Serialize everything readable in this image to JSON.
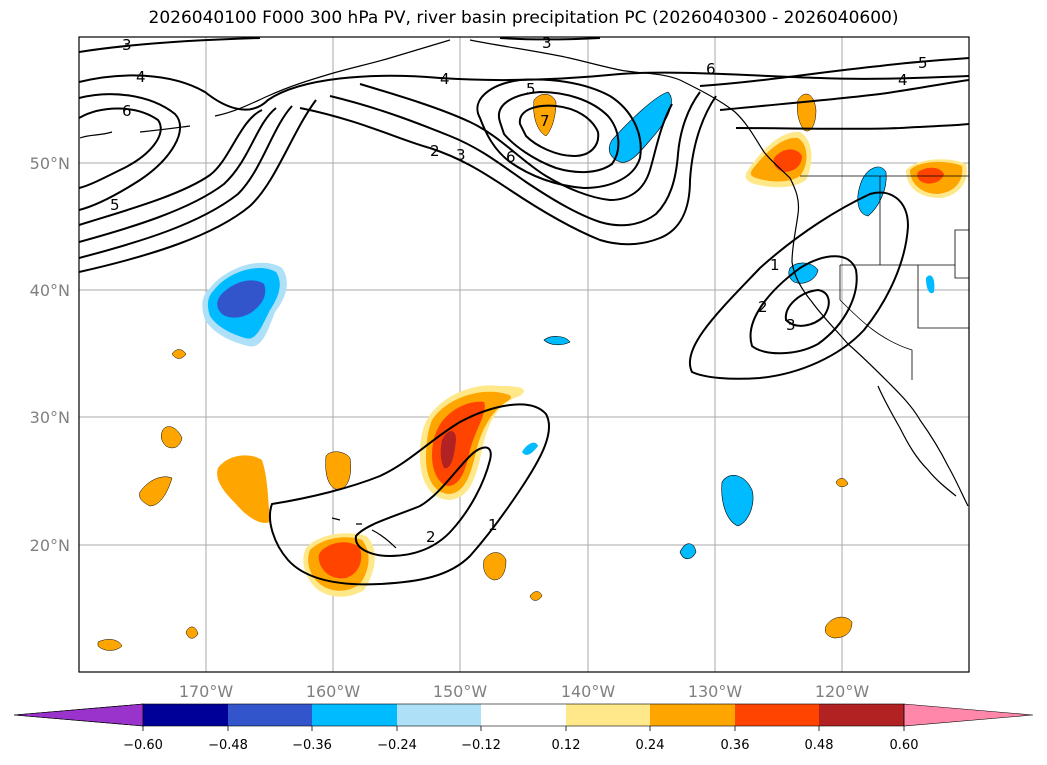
{
  "title": "2026040100 F000 300 hPa PV, river basin precipitation PC (2026040300 - 2026040600)",
  "map": {
    "lat_labels": [
      "50°N",
      "40°N",
      "30°N",
      "20°N"
    ],
    "lon_labels": [
      "170°W",
      "160°W",
      "150°W",
      "140°W",
      "130°W",
      "120°W"
    ],
    "contour_labels": [
      "3",
      "3",
      "4",
      "4",
      "4",
      "5",
      "5",
      "5",
      "6",
      "6",
      "7",
      "2",
      "3",
      "6",
      "1",
      "2",
      "3",
      "2",
      "1"
    ]
  },
  "colorbar": {
    "colors": [
      "#9933cc",
      "#000099",
      "#3355cc",
      "#00bbff",
      "#aee0f8",
      "#ffffff",
      "#ffe88a",
      "#ffa500",
      "#ff4400",
      "#b22222",
      "#ff88aa"
    ],
    "tick_labels": [
      "−0.60",
      "−0.48",
      "−0.36",
      "−0.24",
      "−0.12",
      "0.12",
      "0.24",
      "0.36",
      "0.48",
      "0.60"
    ]
  }
}
